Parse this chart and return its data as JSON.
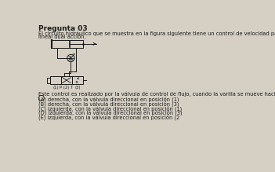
{
  "title": "Pregunta 03",
  "body_line1": "El circuito hidráulico que se muestra en la figura siguiente tiene un control de velocidad para el actuado",
  "body_line2": "lineal dual acción.",
  "question_text": "Este control es realizado por la válvula de control de flujo, cuando la varilla se mueve hacia",
  "options": [
    "(A) derecha, con la válvula direccional en posición (1)",
    "(B) derecha, con la válvula direccional en posición (3)",
    "(C) izquierda, con la válvula direccional en posición (1)",
    "(D) izquierda, con la válvula direccional en posición (3)",
    "(E) izquierda, con la válvula direccional en posición (2"
  ],
  "correct_option": 0,
  "bg_color": "#d6d0c4",
  "text_color": "#1a1a1a",
  "title_fontsize": 6.5,
  "body_fontsize": 4.8,
  "option_fontsize": 4.8,
  "label_fontsize": 3.8,
  "diag_label": "(1)    P (2) T    (3)"
}
